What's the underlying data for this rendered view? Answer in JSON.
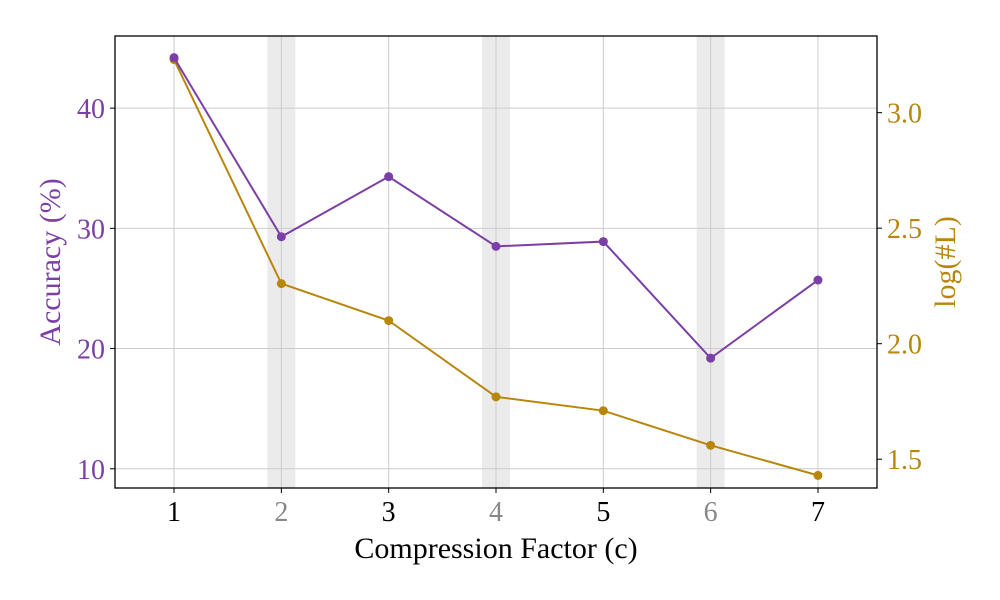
{
  "chart_data": {
    "type": "line",
    "xlabel": "Compression Factor (c)",
    "ylabel_left": "Accuracy (%)",
    "ylabel_right": "log(#L)",
    "x": [
      1,
      2,
      3,
      4,
      5,
      6,
      7
    ],
    "x_tick_labels": [
      "1",
      "2",
      "3",
      "4",
      "5",
      "6",
      "7"
    ],
    "highlighted_x": [
      2,
      4,
      6
    ],
    "xlim": [
      0.45,
      7.55
    ],
    "y_left_lim": [
      8.4,
      46.0
    ],
    "y_left_ticks": [
      10,
      20,
      30,
      40
    ],
    "y_right_lim": [
      1.3754,
      3.3318
    ],
    "y_right_ticks": [
      1.5,
      2.0,
      2.5,
      3.0
    ],
    "y_right_tick_labels": [
      "1.5",
      "2.0",
      "2.5",
      "3.0"
    ],
    "grid": true,
    "series": [
      {
        "axis": "left",
        "color": "#7B3FA6",
        "values": [
          44.2,
          29.3,
          34.3,
          28.5,
          28.9,
          19.2,
          25.7
        ]
      },
      {
        "axis": "right",
        "color": "#B8860B",
        "values": [
          3.23,
          2.26,
          2.1,
          1.77,
          1.71,
          1.56,
          1.43
        ]
      }
    ],
    "colors": {
      "left_axis": "#7B3FA6",
      "right_axis": "#B8860B",
      "highlight_band": "#EBEBEB",
      "dim_tick": "#888888",
      "grid": "#CCCCCC"
    }
  }
}
